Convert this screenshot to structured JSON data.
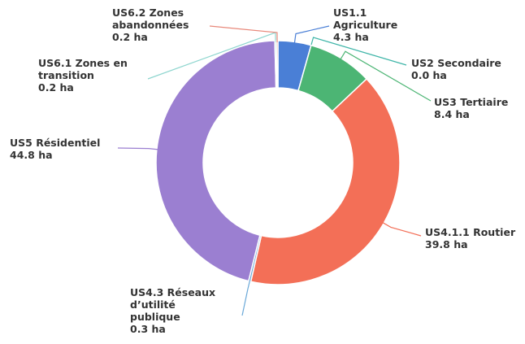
{
  "chart_data": {
    "type": "donut",
    "categories": [
      "US1.1 Agriculture",
      "US2 Secondaire",
      "US3 Tertiaire",
      "US4.1.1 Routier",
      "US4.3 Réseaux d’utilité publique",
      "US5 Résidentiel",
      "US6.1 Zones en transition",
      "US6.2 Zones abandonnées"
    ],
    "values": [
      4.3,
      0.0,
      8.4,
      39.8,
      0.3,
      44.8,
      0.2,
      0.2
    ],
    "value_labels": [
      "4.3 ha",
      "0.0 ha",
      "8.4 ha",
      "39.8 ha",
      "0.3 ha",
      "44.8 ha",
      "0.2 ha",
      "0.2 ha"
    ],
    "colors": [
      "#4a7fd6",
      "#3fb5a8",
      "#4cb574",
      "#f36f57",
      "#6aa8d8",
      "#9b7fd1",
      "#8fd6cf",
      "#e8887a"
    ]
  }
}
